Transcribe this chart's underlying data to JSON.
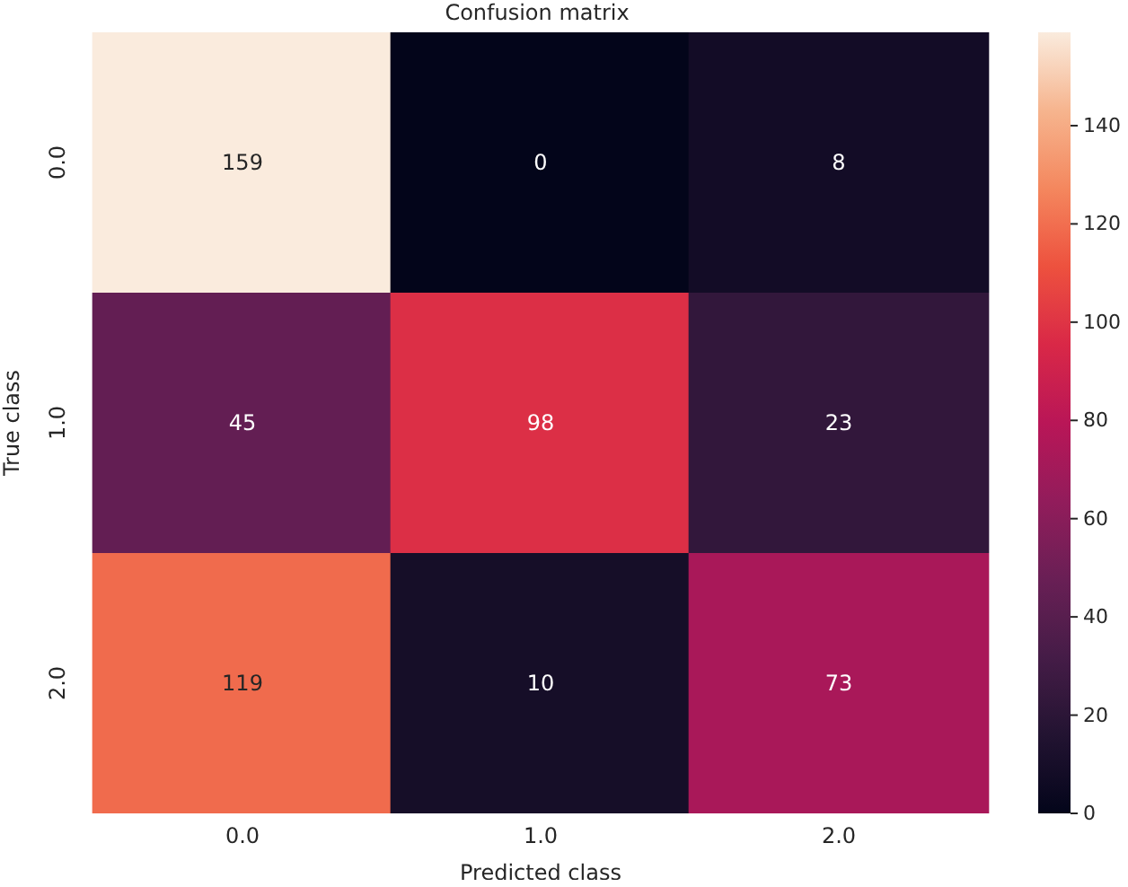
{
  "chart_data": {
    "type": "heatmap",
    "title": "Confusion matrix",
    "xlabel": "Predicted class",
    "ylabel": "True class",
    "categories": [
      "0.0",
      "1.0",
      "2.0"
    ],
    "y_categories": [
      "0.0",
      "1.0",
      "2.0"
    ],
    "cells": [
      [
        159,
        0,
        8
      ],
      [
        45,
        98,
        23
      ],
      [
        119,
        10,
        73
      ]
    ],
    "data_labels": true,
    "clim": [
      0,
      159
    ],
    "cticks": [
      0,
      20,
      40,
      60,
      80,
      100,
      120,
      140
    ]
  }
}
